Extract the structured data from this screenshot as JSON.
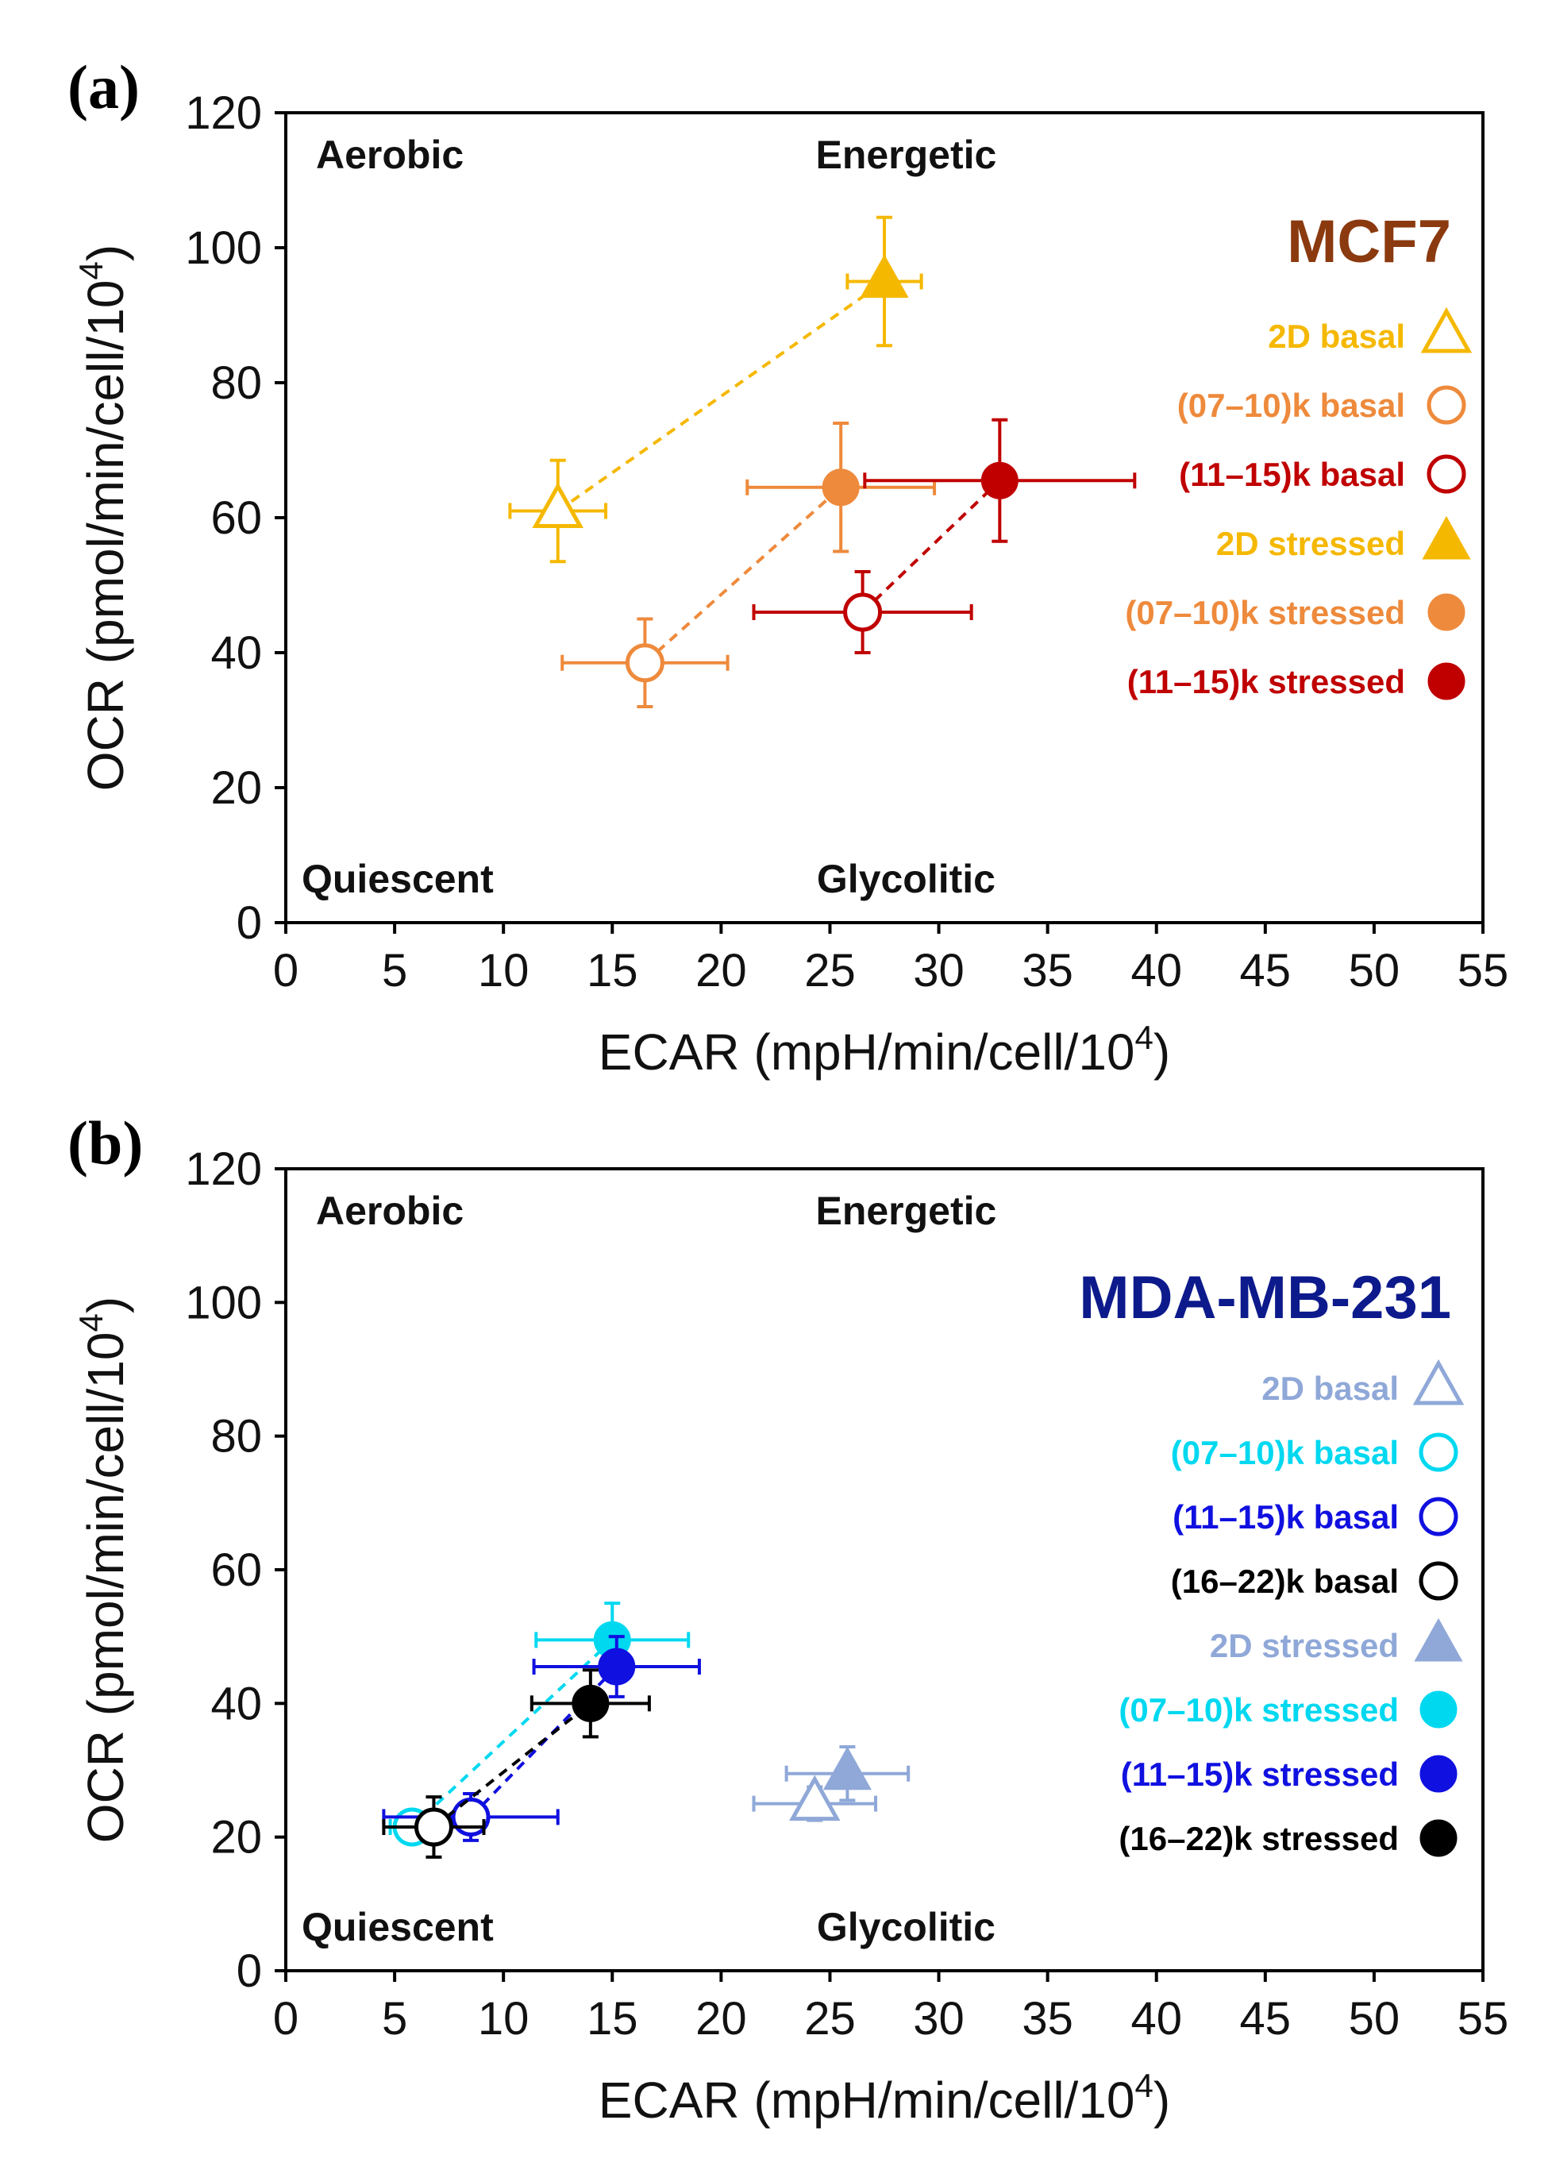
{
  "chart_data": [
    {
      "type": "scatter",
      "panel_label": "(a)",
      "title": "MCF7",
      "title_color": "#8B3A0F",
      "xlabel": "ECAR (mpH/min/cell/10",
      "xlabel_sup": "4",
      "xlabel_end": ")",
      "ylabel": "OCR (pmol/min/cell/10",
      "ylabel_sup": "4",
      "ylabel_end": ")",
      "xlim": [
        0,
        55
      ],
      "ylim": [
        0,
        120
      ],
      "xticks": [
        "0",
        "5",
        "10",
        "15",
        "20",
        "25",
        "30",
        "35",
        "40",
        "45",
        "50",
        "55"
      ],
      "yticks": [
        "0",
        "20",
        "40",
        "60",
        "80",
        "100",
        "120"
      ],
      "quadrants": {
        "top_left": "Aerobic",
        "top_right": "Energetic",
        "bottom_left": "Quiescent",
        "bottom_right": "Glycolitic"
      },
      "legend": [
        {
          "label": "2D basal",
          "color": "#F5B800",
          "marker": "triangle",
          "filled": false
        },
        {
          "label": "(07–10)k basal",
          "color": "#EE8A3C",
          "marker": "circle",
          "filled": false
        },
        {
          "label": "(11–15)k basal",
          "color": "#C00000",
          "marker": "circle",
          "filled": false
        },
        {
          "label": "2D stressed",
          "color": "#F5B800",
          "marker": "triangle",
          "filled": true
        },
        {
          "label": "(07–10)k stressed",
          "color": "#EE8A3C",
          "marker": "circle",
          "filled": true
        },
        {
          "label": "(11–15)k stressed",
          "color": "#C00000",
          "marker": "circle",
          "filled": true
        }
      ],
      "series": [
        {
          "name": "2D",
          "color": "#F5B800",
          "marker": "triangle",
          "basal": {
            "x": 12.5,
            "y": 61,
            "xerr": 2.2,
            "yerr": 7.5
          },
          "stressed": {
            "x": 27.5,
            "y": 95,
            "xerr": 1.7,
            "yerr": 9.5
          }
        },
        {
          "name": "(07–10)k",
          "color": "#EE8A3C",
          "marker": "circle",
          "basal": {
            "x": 16.5,
            "y": 38.5,
            "xerr": 3.8,
            "yerr": 6.5
          },
          "stressed": {
            "x": 25.5,
            "y": 64.5,
            "xerr": 4.3,
            "yerr": 9.5
          }
        },
        {
          "name": "(11–15)k",
          "color": "#C00000",
          "marker": "circle",
          "basal": {
            "x": 26.5,
            "y": 46,
            "xerr": 5.0,
            "yerr": 6.0
          },
          "stressed": {
            "x": 32.8,
            "y": 65.5,
            "xerr": 6.2,
            "yerr": 9.0
          }
        }
      ]
    },
    {
      "type": "scatter",
      "panel_label": "(b)",
      "title": "MDA-MB-231",
      "title_color": "#0D1A8C",
      "xlabel": "ECAR (mpH/min/cell/10",
      "xlabel_sup": "4",
      "xlabel_end": ")",
      "ylabel": "OCR (pmol/min/cell/10",
      "ylabel_sup": "4",
      "ylabel_end": ")",
      "xlim": [
        0,
        55
      ],
      "ylim": [
        0,
        120
      ],
      "xticks": [
        "0",
        "5",
        "10",
        "15",
        "20",
        "25",
        "30",
        "35",
        "40",
        "45",
        "50",
        "55"
      ],
      "yticks": [
        "0",
        "20",
        "40",
        "60",
        "80",
        "100",
        "120"
      ],
      "quadrants": {
        "top_left": "Aerobic",
        "top_right": "Energetic",
        "bottom_left": "Quiescent",
        "bottom_right": "Glycolitic"
      },
      "legend": [
        {
          "label": "2D basal",
          "color": "#8FA8D8",
          "marker": "triangle",
          "filled": false
        },
        {
          "label": "(07–10)k basal",
          "color": "#00D8F0",
          "marker": "circle",
          "filled": false
        },
        {
          "label": "(11–15)k basal",
          "color": "#1010E0",
          "marker": "circle",
          "filled": false
        },
        {
          "label": "(16–22)k basal",
          "color": "#000000",
          "marker": "circle",
          "filled": false
        },
        {
          "label": "2D stressed",
          "color": "#8FA8D8",
          "marker": "triangle",
          "filled": true
        },
        {
          "label": "(07–10)k stressed",
          "color": "#00D8F0",
          "marker": "circle",
          "filled": true
        },
        {
          "label": "(11–15)k stressed",
          "color": "#1010E0",
          "marker": "circle",
          "filled": true
        },
        {
          "label": "(16–22)k stressed",
          "color": "#000000",
          "marker": "circle",
          "filled": true
        }
      ],
      "series": [
        {
          "name": "2D",
          "color": "#8FA8D8",
          "marker": "triangle",
          "connect": false,
          "basal": {
            "x": 24.3,
            "y": 25,
            "xerr": 2.8,
            "yerr": 2.5
          },
          "stressed": {
            "x": 25.8,
            "y": 29.5,
            "xerr": 2.8,
            "yerr": 4.0
          }
        },
        {
          "name": "(07–10)k",
          "color": "#00D8F0",
          "marker": "circle",
          "connect": true,
          "basal": {
            "x": 5.8,
            "y": 21.5,
            "xerr": 1.0,
            "yerr": 2.0
          },
          "stressed": {
            "x": 15.0,
            "y": 49.5,
            "xerr": 3.5,
            "yerr": 5.5
          }
        },
        {
          "name": "(11–15)k",
          "color": "#1010E0",
          "marker": "circle",
          "connect": true,
          "basal": {
            "x": 8.5,
            "y": 23,
            "xerr": 4.0,
            "yerr": 3.5
          },
          "stressed": {
            "x": 15.2,
            "y": 45.5,
            "xerr": 3.8,
            "yerr": 4.5
          }
        },
        {
          "name": "(16–22)k",
          "color": "#000000",
          "marker": "circle",
          "connect": true,
          "basal": {
            "x": 6.8,
            "y": 21.5,
            "xerr": 2.3,
            "yerr": 4.5
          },
          "stressed": {
            "x": 14.0,
            "y": 40,
            "xerr": 2.7,
            "yerr": 5.0
          }
        }
      ]
    }
  ]
}
